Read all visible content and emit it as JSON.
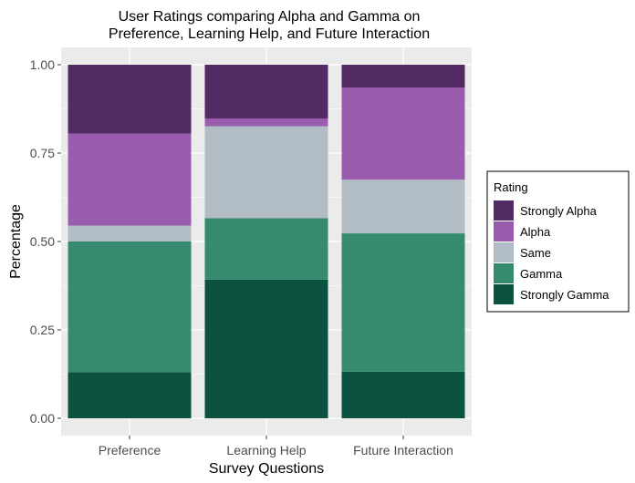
{
  "chart_data": {
    "type": "bar",
    "stacked": true,
    "title_lines": [
      "User Ratings comparing Alpha and Gamma on",
      "Preference, Learning Help, and Future Interaction"
    ],
    "xlabel": "Survey Questions",
    "ylabel": "Percentage",
    "ylim": [
      0,
      1
    ],
    "yticks": [
      "0.00",
      "0.25",
      "0.50",
      "0.75",
      "1.00"
    ],
    "ytick_values": [
      0,
      0.25,
      0.5,
      0.75,
      1.0
    ],
    "categories": [
      "Preference",
      "Learning Help",
      "Future Interaction"
    ],
    "legend": {
      "title": "Rating",
      "position": "right"
    },
    "series": [
      {
        "name": "Strongly Alpha",
        "color": "#522a64",
        "values": [
          0.195,
          0.152,
          0.065
        ]
      },
      {
        "name": "Alpha",
        "color": "#995caf",
        "values": [
          0.26,
          0.022,
          0.26
        ]
      },
      {
        "name": "Same",
        "color": "#b1bcc4",
        "values": [
          0.045,
          0.26,
          0.152
        ]
      },
      {
        "name": "Gamma",
        "color": "#358a6f",
        "values": [
          0.37,
          0.174,
          0.391
        ]
      },
      {
        "name": "Strongly Gamma",
        "color": "#0c5240",
        "values": [
          0.13,
          0.392,
          0.132
        ]
      }
    ]
  }
}
